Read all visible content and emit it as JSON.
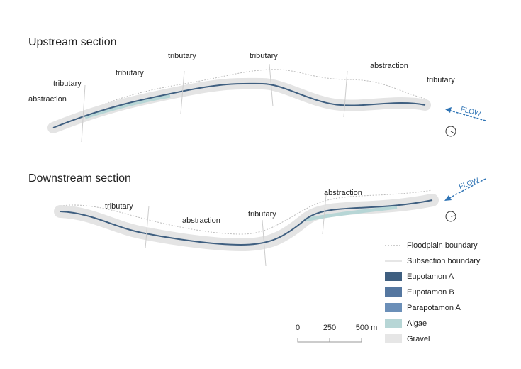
{
  "sections": [
    {
      "title": "Upstream section",
      "labels": [
        "abstraction",
        "tributary",
        "tributary",
        "tributary",
        "tributary",
        "abstraction",
        "tributary"
      ],
      "flow": "FLOW"
    },
    {
      "title": "Downstream section",
      "labels": [
        "tributary",
        "abstraction",
        "tributary",
        "abstraction"
      ],
      "flow": "FLOW"
    }
  ],
  "legend": [
    "Floodplain boundary",
    "Subsection boundary",
    "Eupotamon A",
    "Eupotamon B",
    "Parapotamon A",
    "Algae",
    "Gravel"
  ],
  "scale_bar": [
    "0",
    "250",
    "500 m"
  ]
}
